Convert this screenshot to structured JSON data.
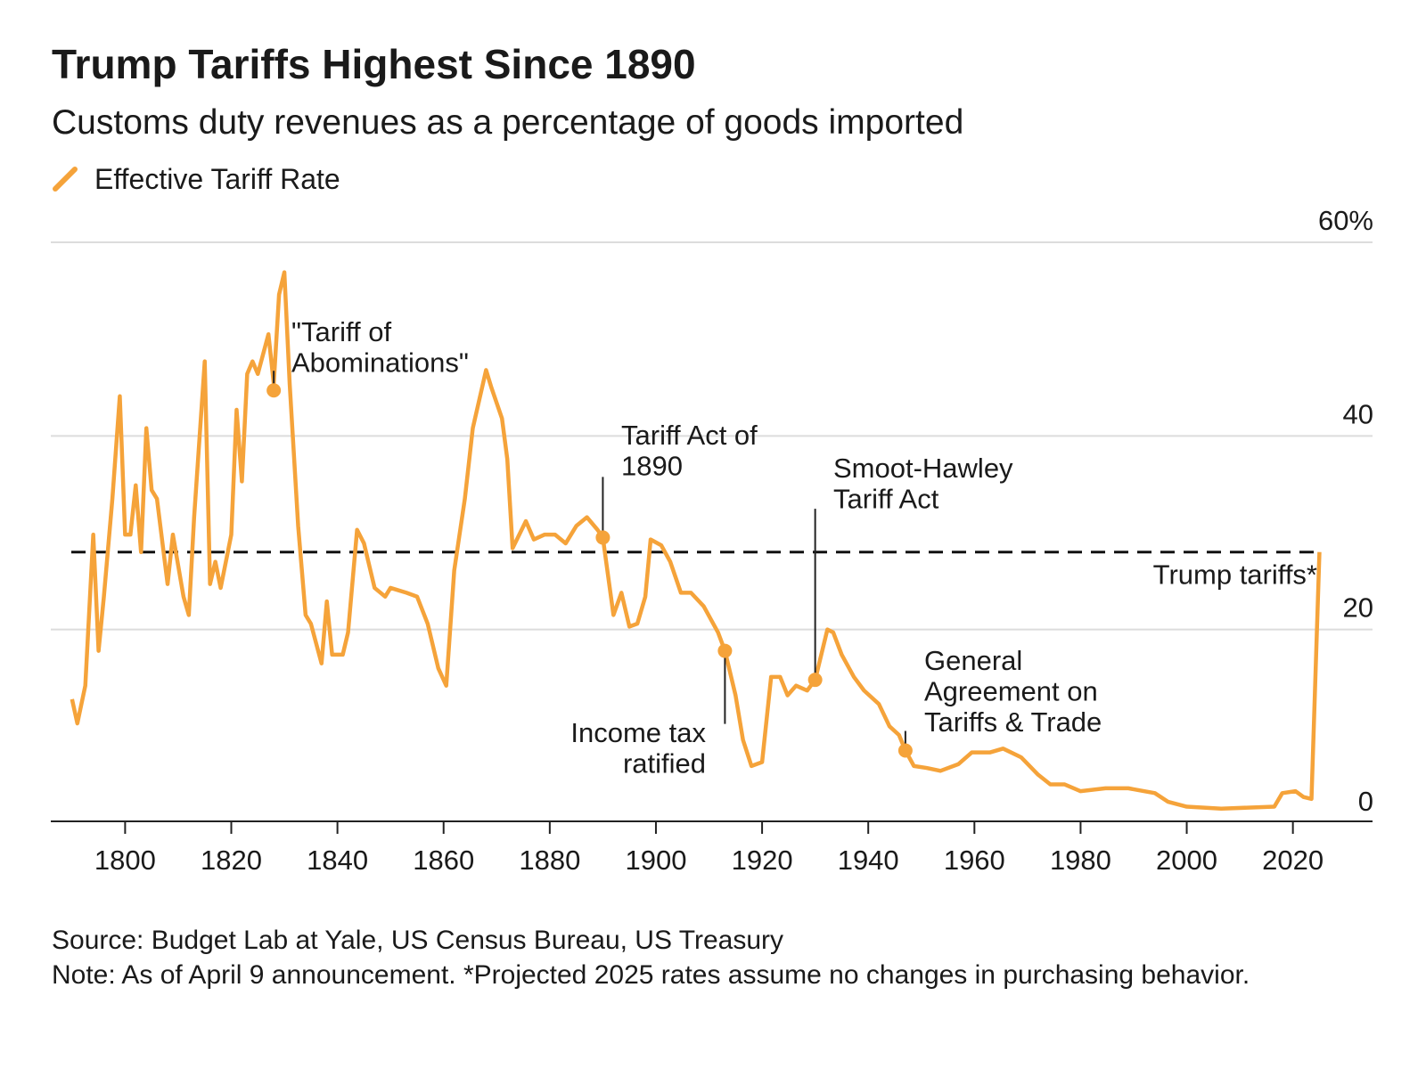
{
  "chart_data": {
    "type": "line",
    "title": "Trump Tariffs Highest Since 1890",
    "subtitle": "Customs duty revenues as a percentage of goods imported",
    "x": [
      1790,
      1791,
      1792.5,
      1794,
      1795,
      1796,
      1797.6,
      1799,
      1800,
      1801,
      1802,
      1803,
      1804,
      1805,
      1806,
      1808,
      1809,
      1811,
      1812,
      1813,
      1815,
      1816,
      1817,
      1818,
      1820,
      1821,
      1822,
      1823,
      1824,
      1825,
      1827,
      1828,
      1829,
      1830,
      1831,
      1832.6,
      1834,
      1835,
      1837,
      1838,
      1839,
      1841,
      1842,
      1843.7,
      1845,
      1847,
      1849,
      1850,
      1853,
      1855,
      1857,
      1859,
      1860.5,
      1862,
      1864,
      1865.5,
      1868,
      1869,
      1871,
      1872,
      1873,
      1875.5,
      1877,
      1879,
      1881,
      1883,
      1885,
      1887,
      1889,
      1890,
      1892,
      1893.5,
      1895,
      1896.5,
      1898,
      1899,
      1901,
      1902.7,
      1904.7,
      1906.6,
      1909,
      1911.7,
      1913,
      1915,
      1916.4,
      1918,
      1920,
      1921.7,
      1923.4,
      1924.8,
      1926.4,
      1928.5,
      1930,
      1932.3,
      1933.4,
      1935,
      1937.3,
      1939.2,
      1942,
      1944,
      1945.8,
      1947,
      1948.6,
      1951,
      1953.6,
      1957,
      1959.5,
      1962.9,
      1965.4,
      1968.8,
      1972,
      1974.3,
      1977,
      1980,
      1984.7,
      1989,
      1994,
      1996.5,
      2000,
      2006.5,
      2011.5,
      2016.5,
      2018,
      2020.5,
      2022,
      2023.5,
      2025
    ],
    "series": [
      {
        "name": "Effective Tariff Rate",
        "color": "#f5a33a",
        "values": [
          12.8,
          10.3,
          14.2,
          29.8,
          17.8,
          23.4,
          33.5,
          44.1,
          29.8,
          29.8,
          34.9,
          28.0,
          40.8,
          34.4,
          33.5,
          24.7,
          29.8,
          23.4,
          21.5,
          31.6,
          47.7,
          24.7,
          27.0,
          24.3,
          29.8,
          42.7,
          35.3,
          46.4,
          47.7,
          46.4,
          50.5,
          45.4,
          54.6,
          56.9,
          45.4,
          30.7,
          21.5,
          20.6,
          16.5,
          22.9,
          17.4,
          17.4,
          19.7,
          30.3,
          28.9,
          24.3,
          23.4,
          24.3,
          23.8,
          23.4,
          20.6,
          16.0,
          14.2,
          26.1,
          33.5,
          40.8,
          46.8,
          45.0,
          41.8,
          37.6,
          28.4,
          31.2,
          29.3,
          29.8,
          29.8,
          28.9,
          30.7,
          31.6,
          30.3,
          29.5,
          21.5,
          23.8,
          20.3,
          20.6,
          23.4,
          29.3,
          28.7,
          27.0,
          23.8,
          23.8,
          22.4,
          19.7,
          17.8,
          13.2,
          8.6,
          5.9,
          6.3,
          15.1,
          15.1,
          13.2,
          14.2,
          13.7,
          14.8,
          20.0,
          19.7,
          17.4,
          15.1,
          13.7,
          12.3,
          10.0,
          9.1,
          7.5,
          5.9,
          5.7,
          5.4,
          6.1,
          7.3,
          7.3,
          7.7,
          6.8,
          5.0,
          4.0,
          4.0,
          3.3,
          3.6,
          3.6,
          3.1,
          2.2,
          1.7,
          1.5,
          1.6,
          1.7,
          3.1,
          3.3,
          2.7,
          2.5,
          28.0
        ]
      }
    ],
    "xlim": [
      1786,
      2035
    ],
    "xticks": [
      1800,
      1820,
      1840,
      1860,
      1880,
      1900,
      1920,
      1940,
      1960,
      1980,
      2000,
      2020
    ],
    "ylim": [
      0,
      60
    ],
    "yticks": [
      0,
      20,
      40,
      {
        "value": 60,
        "label": "60%"
      }
    ],
    "grid": true,
    "reference": {
      "label": "Trump tariffs*",
      "value": 28
    },
    "annotations": [
      {
        "lines": [
          "\"Tariff of",
          "Abominations\""
        ],
        "x": 1828,
        "y": 44.7
      },
      {
        "lines": [
          "Tariff Act of",
          "1890"
        ],
        "x": 1890,
        "y": 29.5
      },
      {
        "lines": [
          "Income tax",
          "ratified"
        ],
        "x": 1913,
        "y": 17.8
      },
      {
        "lines": [
          "Smoot-Hawley",
          "Tariff Act"
        ],
        "x": 1930,
        "y": 14.8
      },
      {
        "lines": [
          "General",
          "Agreement on",
          "Tariffs & Trade"
        ],
        "x": 1947,
        "y": 7.5
      }
    ],
    "source": "Source: Budget Lab at Yale, US Census Bureau, US Treasury",
    "note": "Note: As of April 9 announcement. *Projected 2025 rates assume no changes in purchasing behavior."
  }
}
